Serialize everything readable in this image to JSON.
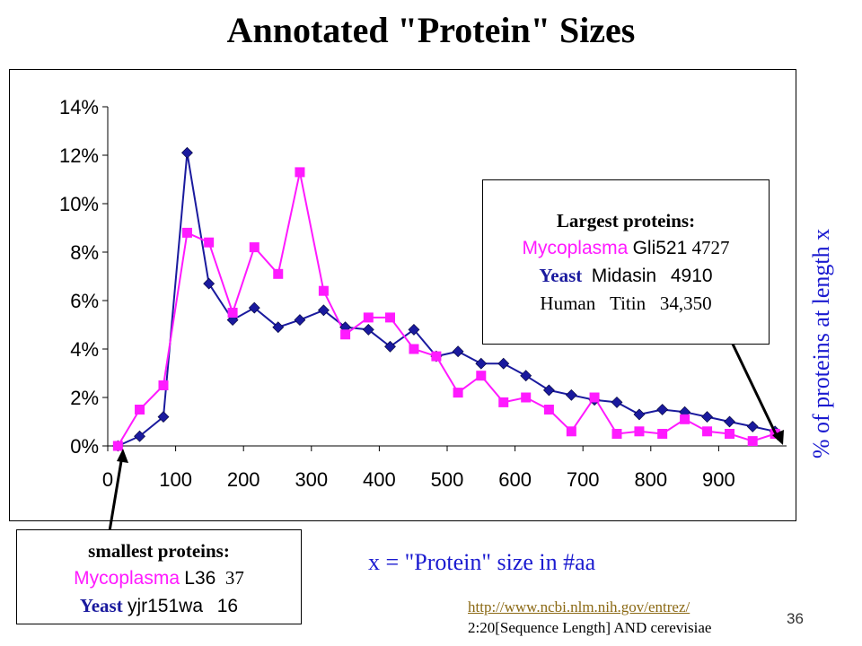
{
  "slide": {
    "title": "Annotated \"Protein\" Sizes",
    "slide_number": "36"
  },
  "largest_box": {
    "heading": "Largest proteins:",
    "rows": [
      {
        "organism": "Mycoplasma",
        "protein": "Gli521",
        "length": "4727"
      },
      {
        "organism": "Yeast",
        "protein": "Midasin",
        "length": "4910"
      },
      {
        "organism": "Human",
        "protein": "Titin",
        "length": "34,350"
      }
    ]
  },
  "smallest_box": {
    "heading": "smallest proteins:",
    "rows": [
      {
        "organism": "Mycoplasma",
        "protein": "L36",
        "length": "37"
      },
      {
        "organism": "Yeast",
        "protein": "yjr151wa",
        "length": "16"
      }
    ]
  },
  "source": {
    "url": "http://www.ncbi.nlm.nih.gov/entrez/",
    "query": "2:20[Sequence Length] AND cerevisiae"
  },
  "colors": {
    "series_navy": "#1a1a9e",
    "series_magenta": "#ff1aff",
    "label_blue": "#1a1ad0"
  },
  "chart_data": {
    "type": "line",
    "xlabel": "x = \"Protein\" size in #aa",
    "ylabel": "% of proteins at length x",
    "xlim": [
      0,
      1000
    ],
    "ylim": [
      0,
      14
    ],
    "x_ticks": [
      "0",
      "100",
      "200",
      "300",
      "400",
      "500",
      "600",
      "700",
      "800",
      "900"
    ],
    "y_ticks": [
      "0%",
      "2%",
      "4%",
      "6%",
      "8%",
      "10%",
      "12%",
      "14%"
    ],
    "grid": false,
    "series": [
      {
        "color": "#1a1a9e",
        "marker": "diamond",
        "x": [
          15,
          47,
          82,
          117,
          149,
          184,
          216,
          251,
          283,
          318,
          350,
          384,
          416,
          451,
          484,
          516,
          550,
          583,
          616,
          650,
          683,
          717,
          750,
          783,
          817,
          850,
          883,
          916,
          950,
          983
        ],
        "y": [
          0.0,
          0.4,
          1.2,
          12.1,
          6.7,
          5.2,
          5.7,
          4.9,
          5.2,
          5.6,
          4.9,
          4.8,
          4.1,
          4.8,
          3.7,
          3.9,
          3.4,
          3.4,
          2.9,
          2.3,
          2.1,
          1.9,
          1.8,
          1.3,
          1.5,
          1.4,
          1.2,
          1.0,
          0.8,
          0.6
        ]
      },
      {
        "color": "#ff1aff",
        "marker": "square",
        "x": [
          15,
          47,
          82,
          117,
          149,
          184,
          216,
          251,
          283,
          318,
          350,
          384,
          416,
          451,
          484,
          516,
          550,
          583,
          616,
          650,
          683,
          717,
          750,
          783,
          817,
          850,
          883,
          916,
          950,
          983
        ],
        "y": [
          0.0,
          1.5,
          2.5,
          8.8,
          8.4,
          5.5,
          8.2,
          7.1,
          11.3,
          6.4,
          4.6,
          5.3,
          5.3,
          4.0,
          3.7,
          2.2,
          2.9,
          1.8,
          2.0,
          1.5,
          0.6,
          2.0,
          0.5,
          0.6,
          0.5,
          1.1,
          0.6,
          0.5,
          0.2,
          0.5
        ]
      }
    ]
  }
}
